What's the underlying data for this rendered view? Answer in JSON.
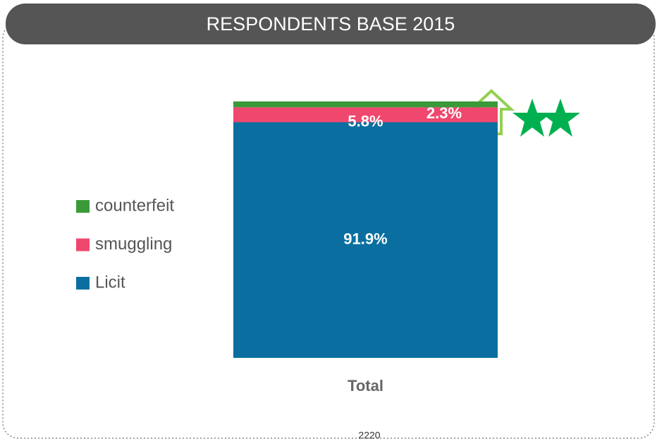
{
  "chart_data": {
    "type": "stacked_bar",
    "title": "RESPONDENTS BASE  2015",
    "categories": [
      "Total"
    ],
    "series": [
      {
        "name": "Licit",
        "color": "#0a6fa0",
        "values": [
          91.9
        ],
        "value_labels": [
          "91.9%"
        ]
      },
      {
        "name": "smuggling",
        "color": "#f0476e",
        "values": [
          5.8
        ],
        "value_labels": [
          "5.8%"
        ]
      },
      {
        "name": "counterfeit",
        "color": "#3a9a3a",
        "values": [
          2.3
        ],
        "value_labels": [
          "2.3%"
        ]
      }
    ],
    "ylim": [
      0,
      100
    ],
    "annotation": "2220"
  }
}
